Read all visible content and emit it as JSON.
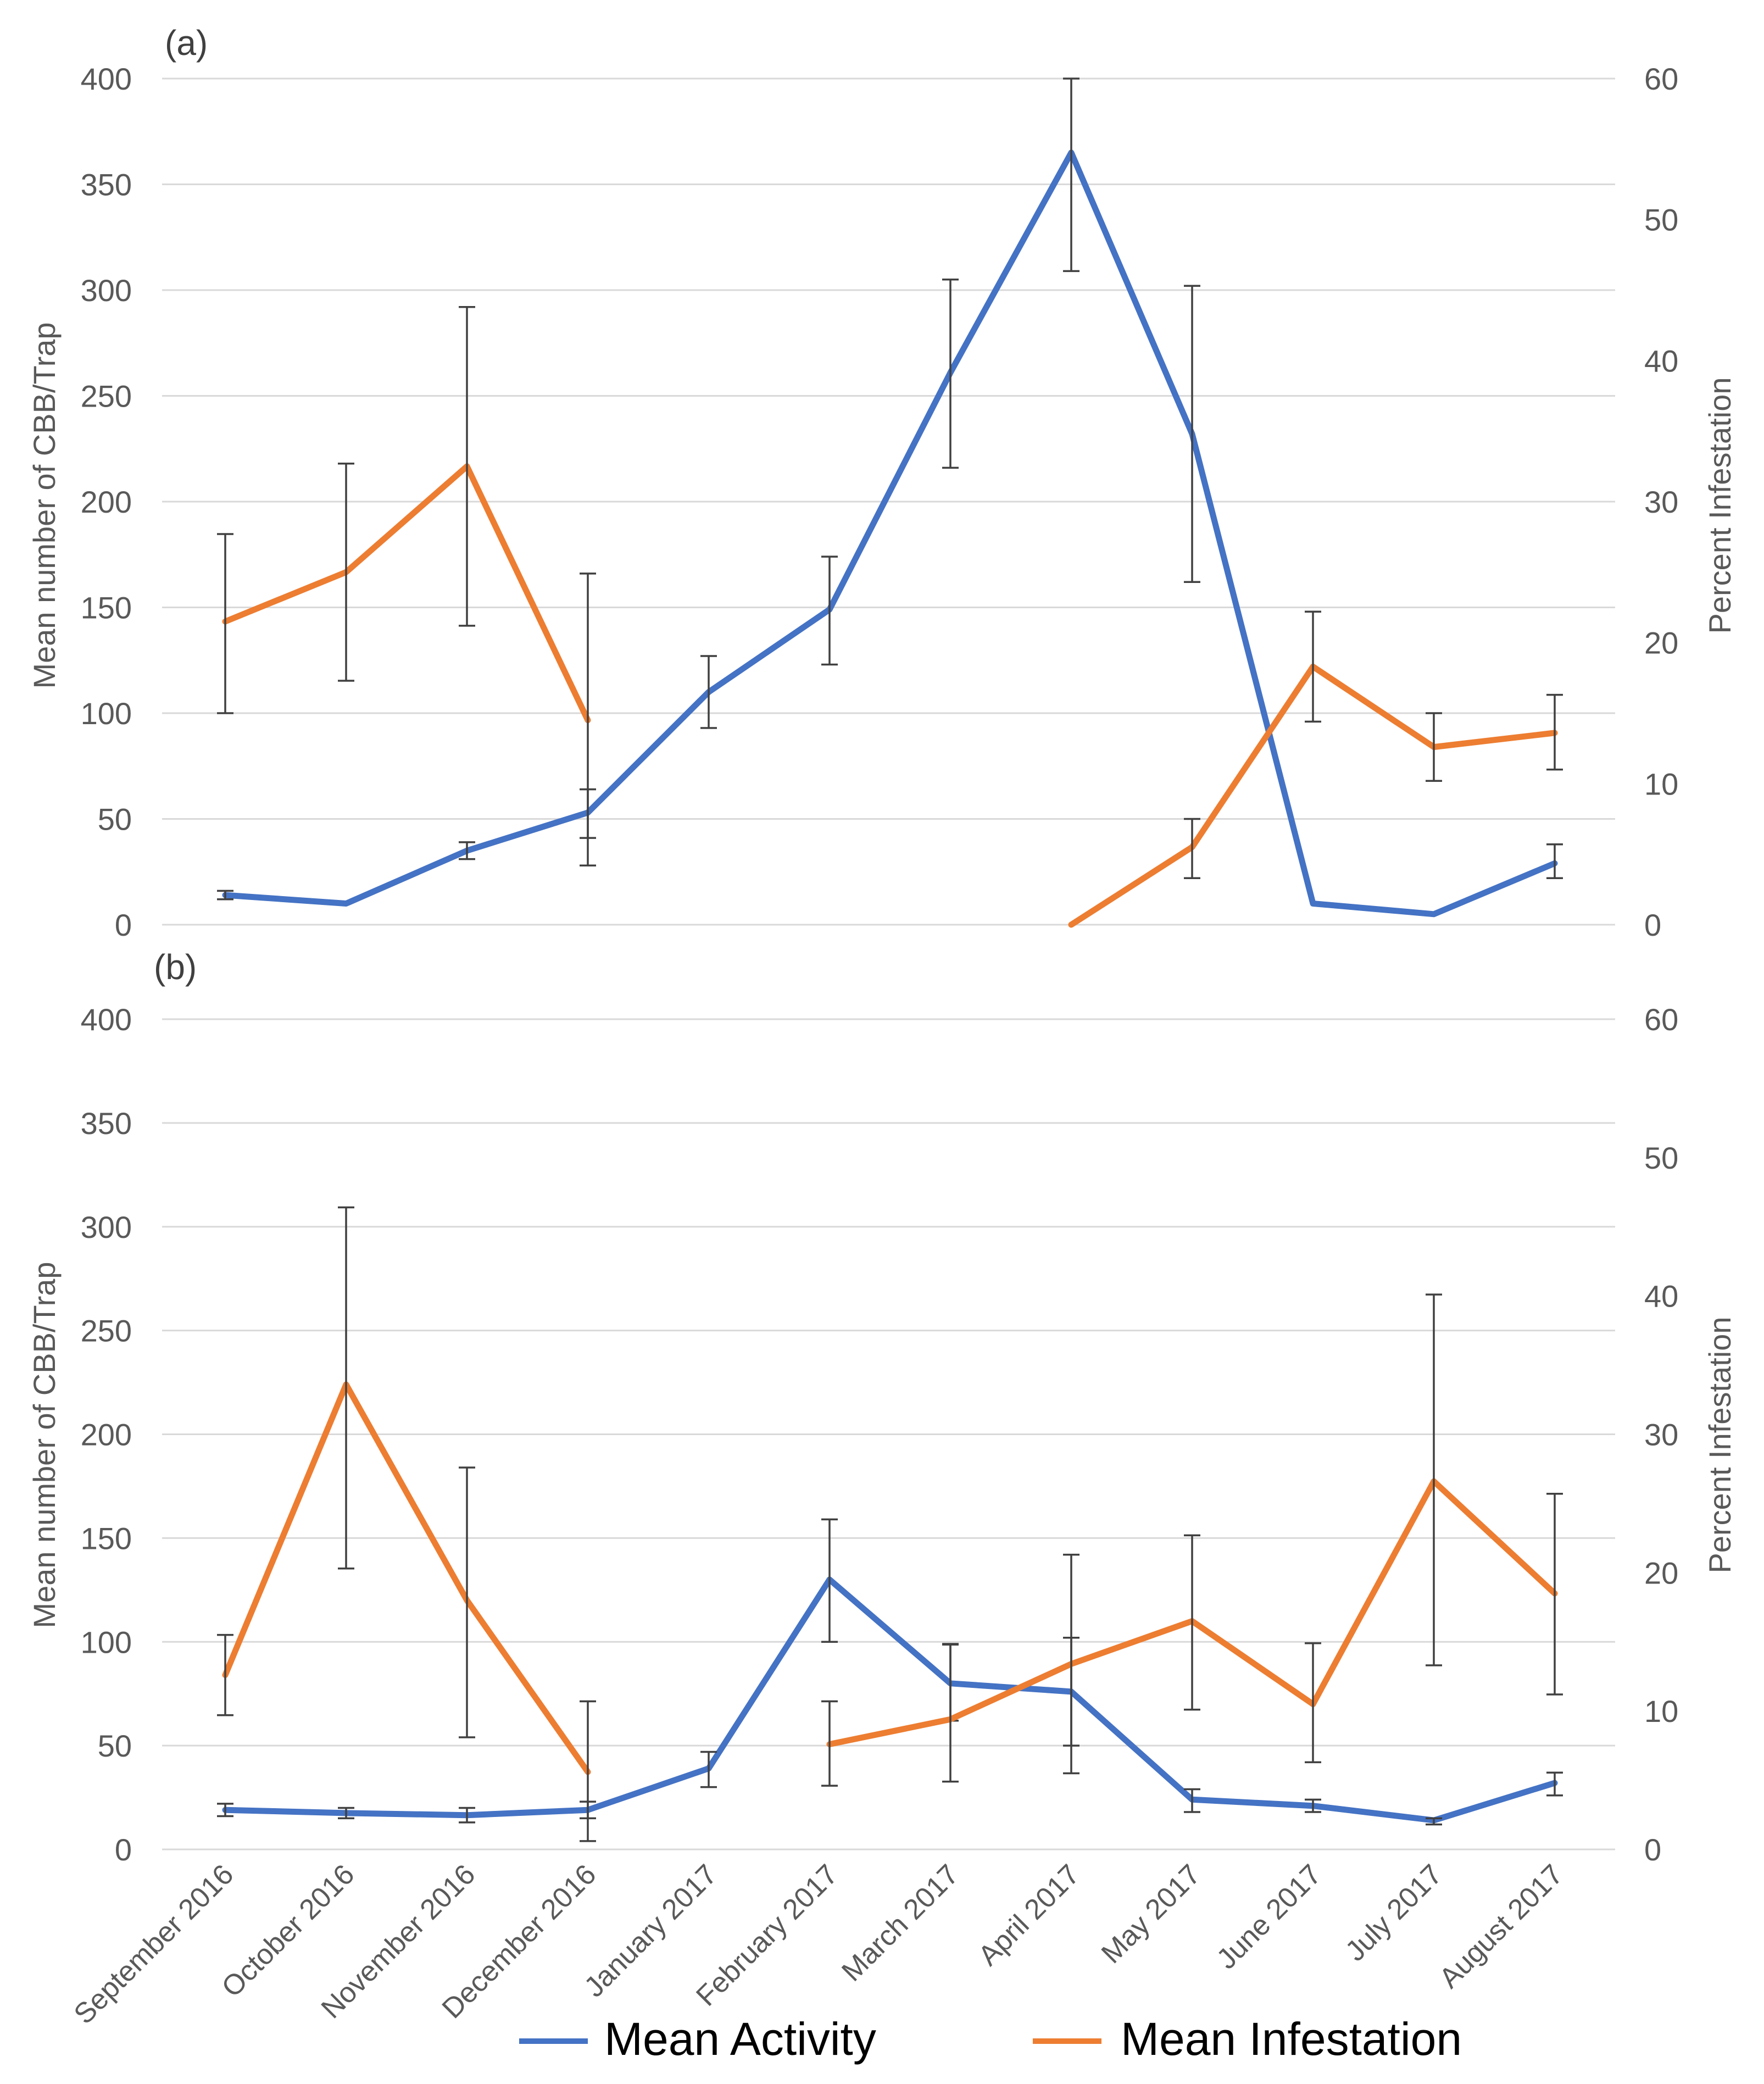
{
  "colors": {
    "activity": "#4472c4",
    "infestation": "#ed7d31",
    "grid": "#d9d9d9",
    "text": "#595959",
    "error": "#404040"
  },
  "legend": {
    "activity_label": "Mean Activity",
    "infestation_label": "Mean Infestation",
    "placement": "bottom-center"
  },
  "chart_data": [
    {
      "type": "line",
      "panel_label": "(a)",
      "title": "",
      "categories": [
        "September 2016",
        "October 2016",
        "November 2016",
        "December 2016",
        "January 2017",
        "February 2017",
        "March 2017",
        "April 2017",
        "May 2017",
        "June 2017",
        "July 2017",
        "August 2017"
      ],
      "ylabel": "Mean number of CBB/Trap",
      "y2label": "Percent Infestation",
      "ylim": [
        0,
        400
      ],
      "y2lim": [
        0,
        60
      ],
      "yticks": [
        0,
        50,
        100,
        150,
        200,
        250,
        300,
        350,
        400
      ],
      "y2ticks": [
        0,
        10,
        20,
        30,
        40,
        50,
        60
      ],
      "series": [
        {
          "name": "Mean Activity",
          "axis": "left",
          "values": [
            14,
            10,
            35,
            53,
            110,
            149,
            261,
            365,
            232,
            10,
            5,
            29
          ],
          "err_low": [
            12,
            10,
            31,
            41,
            93,
            123,
            216,
            309,
            162,
            10,
            5,
            22
          ],
          "err_high": [
            16,
            10,
            39,
            64,
            127,
            174,
            305,
            400,
            302,
            10,
            5,
            38
          ]
        },
        {
          "name": "Mean Infestation",
          "axis": "right",
          "values": [
            21.5,
            25,
            32.5,
            14.5,
            null,
            null,
            null,
            0,
            5.5,
            18.3,
            12.6,
            13.6
          ],
          "err_low": [
            15,
            17.3,
            21.2,
            4.2,
            null,
            null,
            null,
            0,
            3.3,
            14.4,
            10.2,
            11
          ],
          "err_high": [
            27.7,
            32.7,
            43.8,
            24.9,
            null,
            null,
            null,
            0,
            7.5,
            22.2,
            15,
            16.3
          ]
        }
      ]
    },
    {
      "type": "line",
      "panel_label": "(b)",
      "title": "",
      "categories": [
        "September 2016",
        "October 2016",
        "November 2016",
        "December 2016",
        "January 2017",
        "February 2017",
        "March 2017",
        "April 2017",
        "May 2017",
        "June 2017",
        "July 2017",
        "August 2017"
      ],
      "ylabel": "Mean number of CBB/Trap",
      "y2label": "Percent Infestation",
      "ylim": [
        0,
        400
      ],
      "y2lim": [
        0,
        60
      ],
      "yticks": [
        0,
        50,
        100,
        150,
        200,
        250,
        300,
        350,
        400
      ],
      "y2ticks": [
        0,
        10,
        20,
        30,
        40,
        50,
        60
      ],
      "series": [
        {
          "name": "Mean Activity",
          "axis": "left",
          "values": [
            19,
            17.5,
            16.5,
            19,
            39,
            130,
            80,
            76,
            24,
            21,
            14,
            32
          ],
          "err_low": [
            16,
            15,
            13,
            15,
            30,
            100,
            62,
            50,
            18,
            18,
            12,
            26
          ],
          "err_high": [
            22,
            20,
            20,
            23,
            47,
            159,
            99,
            102,
            29,
            24,
            15,
            37
          ]
        },
        {
          "name": "Mean Infestation",
          "axis": "right",
          "values": [
            12.6,
            33.6,
            18,
            5.6,
            null,
            7.6,
            9.4,
            13.4,
            16.5,
            10.5,
            26.6,
            18.5
          ],
          "err_low": [
            9.7,
            20.3,
            8.1,
            0.6,
            null,
            4.6,
            4.9,
            5.5,
            10.1,
            6.3,
            13.3,
            11.2
          ],
          "err_high": [
            15.5,
            46.4,
            27.6,
            10.7,
            null,
            10.7,
            14.8,
            21.3,
            22.7,
            14.9,
            40.1,
            25.7
          ]
        }
      ]
    }
  ]
}
